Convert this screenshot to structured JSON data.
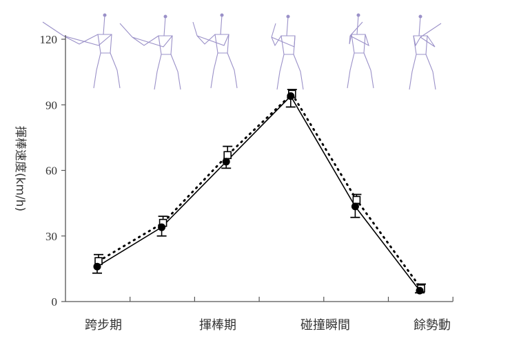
{
  "chart_data": {
    "type": "line",
    "title": "",
    "xlabel": "",
    "ylabel": "揮棒速度(km/h)",
    "ylim": [
      0,
      120
    ],
    "yticks": [
      0,
      30,
      60,
      90,
      120
    ],
    "category_labels": [
      "跨步期",
      "揮棒期",
      "碰撞瞬間",
      "餘勢動"
    ],
    "x": [
      1,
      2,
      3,
      4,
      5,
      6
    ],
    "grid": false,
    "legend": "none",
    "series": [
      {
        "style": "solid line, filled circle markers",
        "color": "#000000",
        "values": [
          16,
          34,
          64,
          94,
          43.5,
          5
        ],
        "error_low": [
          13,
          30,
          61,
          89,
          38.5,
          4
        ]
      },
      {
        "style": "dotted line, open square markers",
        "color": "#000000",
        "values": [
          18.5,
          36,
          67,
          95,
          46.5,
          6
        ],
        "error_high": [
          21.5,
          39,
          71,
          97,
          49,
          8
        ]
      }
    ],
    "illustrations": "six stick-figure poses of a batting swing shown above the plot"
  }
}
